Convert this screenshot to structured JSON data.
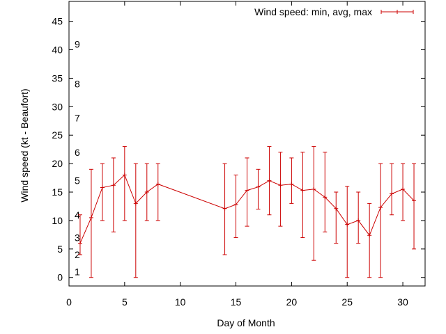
{
  "chart_data": {
    "type": "line",
    "title": "",
    "xlabel": "Day of Month",
    "ylabel": "Wind speed (kt - Beaufort)",
    "xlim": [
      0,
      32
    ],
    "ylim": [
      -1.5,
      48.5
    ],
    "x_ticks": [
      0,
      5,
      10,
      15,
      20,
      25,
      30
    ],
    "y_ticks": [
      0,
      5,
      10,
      15,
      20,
      25,
      30,
      35,
      40,
      45
    ],
    "beaufort_labels": [
      {
        "label": "1",
        "y": 1
      },
      {
        "label": "2",
        "y": 4
      },
      {
        "label": "3",
        "y": 7
      },
      {
        "label": "4",
        "y": 11
      },
      {
        "label": "5",
        "y": 17
      },
      {
        "label": "6",
        "y": 22
      },
      {
        "label": "7",
        "y": 28
      },
      {
        "label": "8",
        "y": 34
      },
      {
        "label": "9",
        "y": 41
      }
    ],
    "grid": false,
    "legend_position": "top-right",
    "series": [
      {
        "name": "Wind speed: min, avg, max",
        "color": "#cc0000",
        "points": [
          {
            "x": 1,
            "y": 6,
            "min": 4,
            "max": 11
          },
          {
            "x": 2,
            "y": 10.5,
            "min": 0,
            "max": 19
          },
          {
            "x": 3,
            "y": 15.8,
            "min": 10,
            "max": 20
          },
          {
            "x": 4,
            "y": 16.2,
            "min": 8,
            "max": 21
          },
          {
            "x": 5,
            "y": 18,
            "min": 10,
            "max": 23
          },
          {
            "x": 6,
            "y": 13,
            "min": 0,
            "max": 20
          },
          {
            "x": 7,
            "y": 15,
            "min": 10,
            "max": 20
          },
          {
            "x": 8,
            "y": 16.4,
            "min": 10,
            "max": 20
          },
          {
            "x": 14,
            "y": 12.1,
            "min": 4,
            "max": 20
          },
          {
            "x": 15,
            "y": 12.8,
            "min": 7,
            "max": 18
          },
          {
            "x": 16,
            "y": 15.3,
            "min": 9,
            "max": 21
          },
          {
            "x": 17,
            "y": 15.9,
            "min": 12,
            "max": 19
          },
          {
            "x": 18,
            "y": 17,
            "min": 11,
            "max": 23
          },
          {
            "x": 19,
            "y": 16.2,
            "min": 9,
            "max": 22
          },
          {
            "x": 20,
            "y": 16.4,
            "min": 13,
            "max": 21
          },
          {
            "x": 21,
            "y": 15.3,
            "min": 7,
            "max": 22
          },
          {
            "x": 22,
            "y": 15.5,
            "min": 3,
            "max": 23
          },
          {
            "x": 23,
            "y": 14.1,
            "min": 8,
            "max": 22
          },
          {
            "x": 24,
            "y": 12.1,
            "min": 6,
            "max": 15
          },
          {
            "x": 25,
            "y": 9.3,
            "min": 0,
            "max": 16
          },
          {
            "x": 26,
            "y": 10,
            "min": 6,
            "max": 15
          },
          {
            "x": 27,
            "y": 7.4,
            "min": 0,
            "max": 13
          },
          {
            "x": 28,
            "y": 12.3,
            "min": 0,
            "max": 20
          },
          {
            "x": 29,
            "y": 14.7,
            "min": 11,
            "max": 20
          },
          {
            "x": 30,
            "y": 15.5,
            "min": 10,
            "max": 20
          },
          {
            "x": 31,
            "y": 13.5,
            "min": 5,
            "max": 20
          }
        ]
      }
    ]
  }
}
